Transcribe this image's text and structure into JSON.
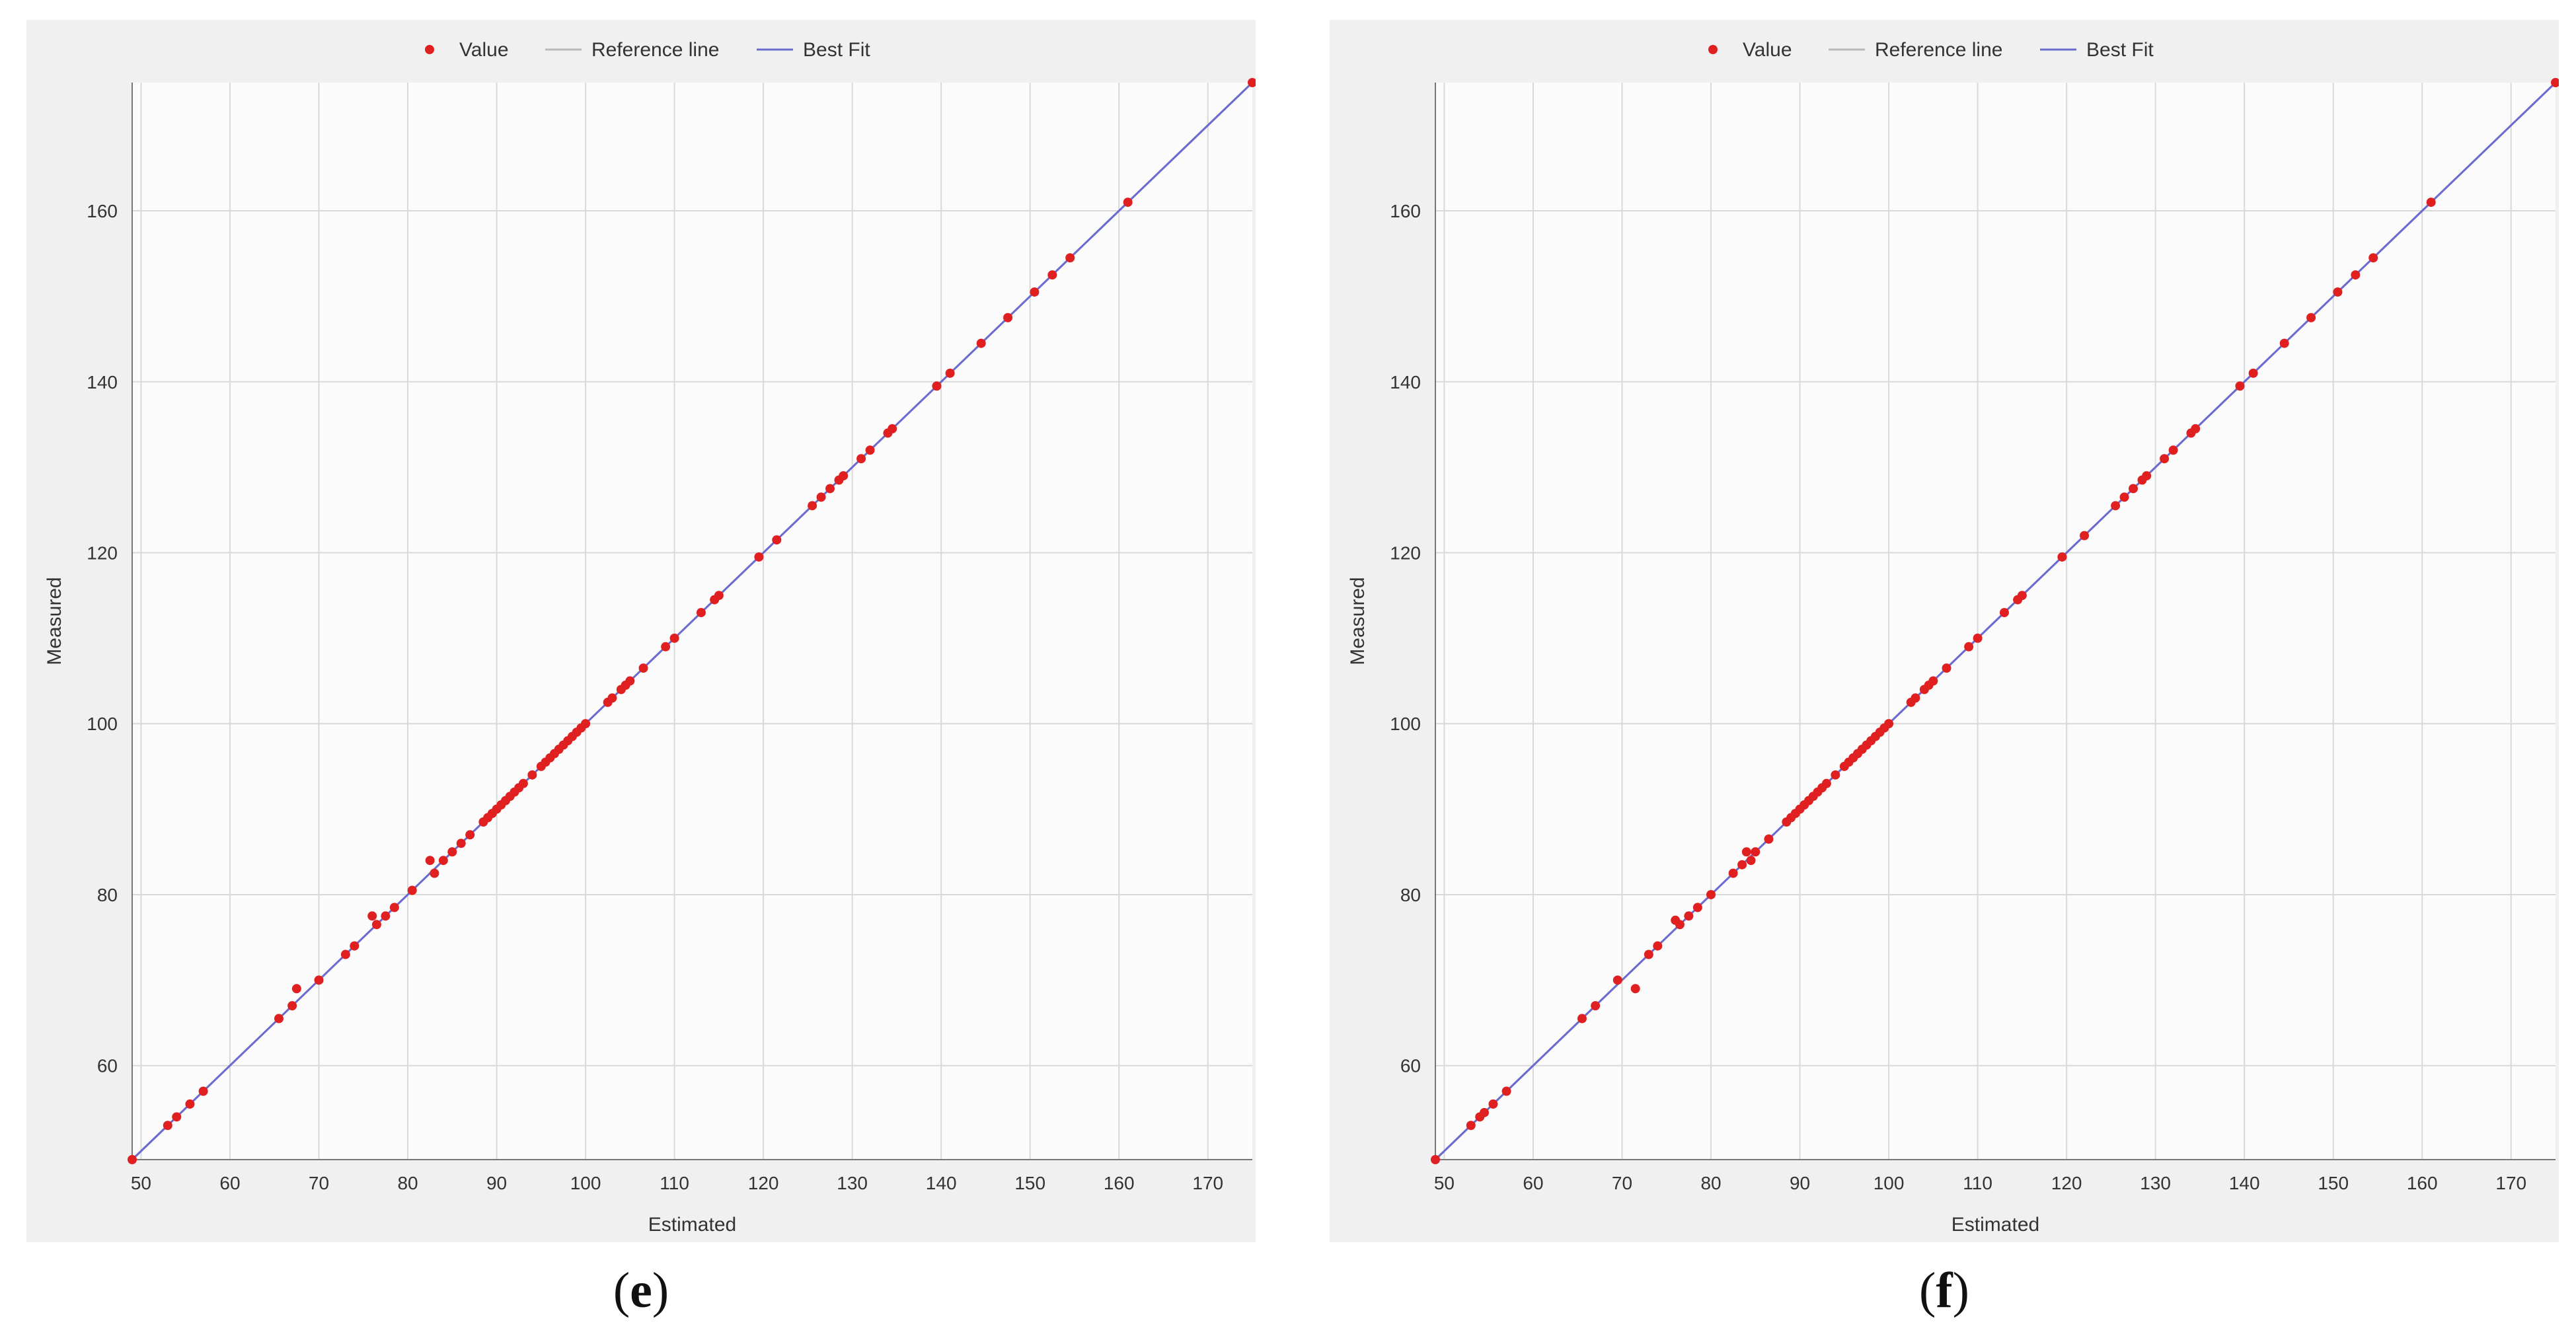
{
  "panels": [
    {
      "id": "e",
      "caption_letter": "e",
      "caption": "(e)"
    },
    {
      "id": "f",
      "caption_letter": "f",
      "caption": "(f)"
    }
  ],
  "chart_data": [
    {
      "type": "scatter",
      "title": "",
      "xlabel": "Estimated",
      "ylabel": "Measured",
      "xlim": [
        49,
        175
      ],
      "ylim": [
        49,
        175
      ],
      "xticks": [
        50,
        60,
        70,
        80,
        90,
        100,
        110,
        120,
        130,
        140,
        150,
        160,
        170
      ],
      "yticks": [
        60,
        80,
        100,
        120,
        140,
        160
      ],
      "grid": true,
      "legend_position": "top-center",
      "legend": [
        "Value",
        "Reference line",
        "Best Fit"
      ],
      "colors": {
        "value": "#e02020",
        "reference_line": "#b8b8b8",
        "best_fit": "#6a6ad0",
        "background": "#f0f0f0",
        "plot_bg": "#fbfbfb",
        "grid": "#d9d9d9"
      },
      "series": [
        {
          "name": "Value",
          "x": [
            49,
            53,
            54,
            55.5,
            57,
            65.5,
            67,
            67.5,
            70,
            73,
            74,
            76,
            76.5,
            77.5,
            78.5,
            80.5,
            82.5,
            83,
            84,
            85,
            86,
            87,
            88.5,
            89,
            89.5,
            90,
            90.5,
            91,
            91.5,
            92,
            92.5,
            93,
            94,
            95,
            95.5,
            96,
            96.5,
            97,
            97.5,
            98,
            98.5,
            99,
            99.5,
            100,
            102.5,
            103,
            104,
            104.5,
            105,
            106.5,
            109,
            110,
            113,
            114.5,
            115,
            119.5,
            121.5,
            125.5,
            126.5,
            127.5,
            128.5,
            129,
            131,
            132,
            134,
            134.5,
            139.5,
            141,
            144.5,
            147.5,
            150.5,
            152.5,
            154.5,
            161,
            175
          ],
          "y": [
            49,
            53,
            54,
            55.5,
            57,
            65.5,
            67,
            69,
            70,
            73,
            74,
            77.5,
            76.5,
            77.5,
            78.5,
            80.5,
            84,
            82.5,
            84,
            85,
            86,
            87,
            88.5,
            89,
            89.5,
            90,
            90.5,
            91,
            91.5,
            92,
            92.5,
            93,
            94,
            95,
            95.5,
            96,
            96.5,
            97,
            97.5,
            98,
            98.5,
            99,
            99.5,
            100,
            102.5,
            103,
            104,
            104.5,
            105,
            106.5,
            109,
            110,
            113,
            114.5,
            115,
            119.5,
            121.5,
            125.5,
            126.5,
            127.5,
            128.5,
            129,
            131,
            132,
            134,
            134.5,
            139.5,
            141,
            144.5,
            147.5,
            150.5,
            152.5,
            154.5,
            161,
            175
          ]
        },
        {
          "name": "Reference line",
          "x": [
            49,
            175
          ],
          "y": [
            49,
            175
          ]
        },
        {
          "name": "Best Fit",
          "x": [
            49,
            175
          ],
          "y": [
            49,
            175
          ]
        }
      ]
    },
    {
      "type": "scatter",
      "title": "",
      "xlabel": "Estimated",
      "ylabel": "Measured",
      "xlim": [
        49,
        175
      ],
      "ylim": [
        49,
        175
      ],
      "xticks": [
        50,
        60,
        70,
        80,
        90,
        100,
        110,
        120,
        130,
        140,
        150,
        160,
        170
      ],
      "yticks": [
        60,
        80,
        100,
        120,
        140,
        160
      ],
      "grid": true,
      "legend_position": "top-center",
      "legend": [
        "Value",
        "Reference line",
        "Best Fit"
      ],
      "colors": {
        "value": "#e02020",
        "reference_line": "#b8b8b8",
        "best_fit": "#6a6ad0",
        "background": "#f0f0f0",
        "plot_bg": "#fbfbfb",
        "grid": "#d9d9d9"
      },
      "series": [
        {
          "name": "Value",
          "x": [
            49,
            53,
            54,
            54.5,
            55.5,
            57,
            65.5,
            67,
            69.5,
            71.5,
            73,
            74,
            76,
            76.5,
            77.5,
            78.5,
            80,
            82.5,
            83.5,
            84,
            84.5,
            85,
            86.5,
            88.5,
            89,
            89.5,
            90,
            90.5,
            91,
            91.5,
            92,
            92.5,
            93,
            94,
            95,
            95.5,
            96,
            96.5,
            97,
            97.5,
            98,
            98.5,
            99,
            99.5,
            100,
            102.5,
            103,
            104,
            104.5,
            105,
            106.5,
            109,
            110,
            113,
            114.5,
            115,
            119.5,
            122,
            125.5,
            126.5,
            127.5,
            128.5,
            129,
            131,
            132,
            134,
            134.5,
            139.5,
            141,
            144.5,
            147.5,
            150.5,
            152.5,
            154.5,
            161,
            175
          ],
          "y": [
            49,
            53,
            54,
            54.5,
            55.5,
            57,
            65.5,
            67,
            70,
            69,
            73,
            74,
            77,
            76.5,
            77.5,
            78.5,
            80,
            82.5,
            83.5,
            85,
            84,
            85,
            86.5,
            88.5,
            89,
            89.5,
            90,
            90.5,
            91,
            91.5,
            92,
            92.5,
            93,
            94,
            95,
            95.5,
            96,
            96.5,
            97,
            97.5,
            98,
            98.5,
            99,
            99.5,
            100,
            102.5,
            103,
            104,
            104.5,
            105,
            106.5,
            109,
            110,
            113,
            114.5,
            115,
            119.5,
            122,
            125.5,
            126.5,
            127.5,
            128.5,
            129,
            131,
            132,
            134,
            134.5,
            139.5,
            141,
            144.5,
            147.5,
            150.5,
            152.5,
            154.5,
            161,
            175
          ]
        },
        {
          "name": "Reference line",
          "x": [
            49,
            175
          ],
          "y": [
            49,
            175
          ]
        },
        {
          "name": "Best Fit",
          "x": [
            49,
            175
          ],
          "y": [
            49,
            175
          ]
        }
      ]
    }
  ]
}
